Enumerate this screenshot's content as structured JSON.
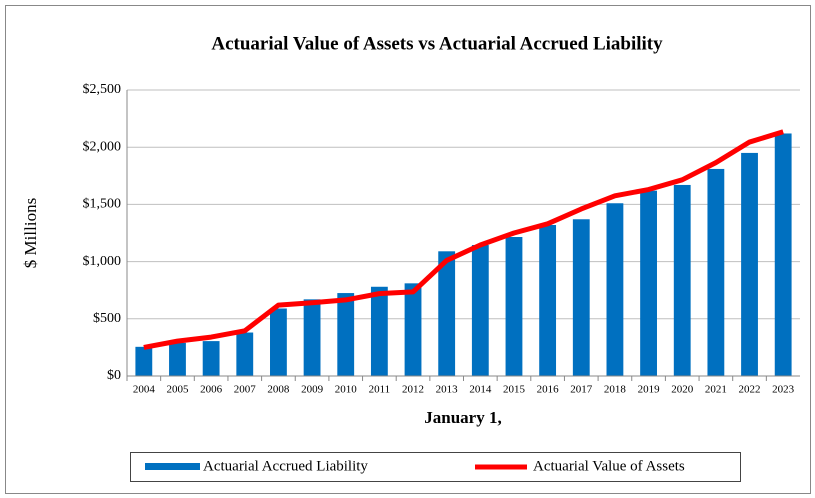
{
  "chart_data": {
    "type": "bar_line",
    "title": "Actuarial Value of Assets vs Actuarial Accrued Liability",
    "y_label": "$ Millions",
    "x_label": "January 1,",
    "categories": [
      "2004",
      "2005",
      "2006",
      "2007",
      "2008",
      "2009",
      "2010",
      "2011",
      "2012",
      "2013",
      "2014",
      "2015",
      "2016",
      "2017",
      "2018",
      "2019",
      "2020",
      "2021",
      "2022",
      "2023"
    ],
    "series": [
      {
        "name": "Actuarial Accrued Liability",
        "type": "bar",
        "color": "#0070c0",
        "values": [
          255,
          290,
          305,
          380,
          590,
          670,
          725,
          780,
          810,
          1090,
          1145,
          1215,
          1320,
          1370,
          1510,
          1620,
          1670,
          1810,
          1950,
          2120
        ]
      },
      {
        "name": "Actuarial Value of Assets",
        "type": "line",
        "color": "#ff0000",
        "values": [
          250,
          305,
          340,
          395,
          620,
          640,
          665,
          720,
          735,
          1010,
          1145,
          1250,
          1330,
          1460,
          1575,
          1630,
          1715,
          1865,
          2045,
          2135
        ]
      }
    ],
    "ylim": [
      0,
      2500
    ],
    "yticks": [
      {
        "value": 0,
        "label": "$0"
      },
      {
        "value": 500,
        "label": "$500"
      },
      {
        "value": 1000,
        "label": "$1,000"
      },
      {
        "value": 1500,
        "label": "$1,500"
      },
      {
        "value": 2000,
        "label": "$2,000"
      },
      {
        "value": 2500,
        "label": "$2,500"
      }
    ],
    "grid": true,
    "legend": "bottom"
  }
}
